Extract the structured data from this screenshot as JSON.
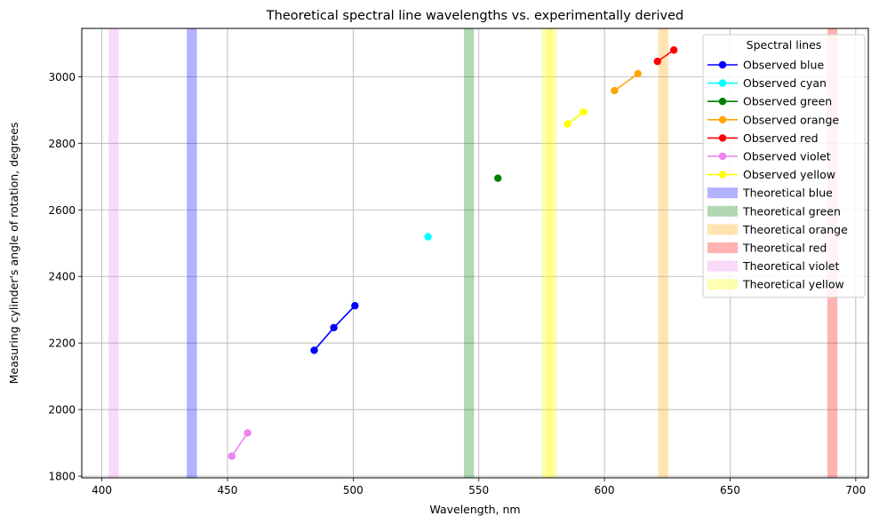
{
  "chart_data": {
    "type": "line",
    "title": "Theoretical spectral line wavelengths vs. experimentally derived",
    "xlabel": "Wavelength, nm",
    "ylabel": "Measuring cylinder's angle of rotation, degrees",
    "xlim": [
      392,
      705
    ],
    "ylim": [
      1795,
      3145
    ],
    "xticks": [
      400,
      450,
      500,
      550,
      600,
      650,
      700
    ],
    "yticks": [
      1800,
      2000,
      2200,
      2400,
      2600,
      2800,
      3000
    ],
    "grid": true,
    "legend": {
      "title": "Spectral lines",
      "placement": "top-right"
    },
    "series": [
      {
        "name": "Observed blue",
        "color": "#0000ff",
        "x": [
          484.5,
          492.3,
          500.7
        ],
        "y": [
          2178,
          2246,
          2312
        ]
      },
      {
        "name": "Observed cyan",
        "color": "#00ffff",
        "x": [
          529.8
        ],
        "y": [
          2519
        ]
      },
      {
        "name": "Observed green",
        "color": "#008000",
        "x": [
          557.6
        ],
        "y": [
          2695
        ]
      },
      {
        "name": "Observed orange",
        "color": "#ffa500",
        "x": [
          604.0,
          613.3
        ],
        "y": [
          2958,
          3009
        ]
      },
      {
        "name": "Observed red",
        "color": "#ff0000",
        "x": [
          621.1,
          627.6
        ],
        "y": [
          3046,
          3080
        ]
      },
      {
        "name": "Observed violet",
        "color": "#ee82ee",
        "x": [
          451.7,
          458.0
        ],
        "y": [
          1860,
          1930
        ]
      },
      {
        "name": "Observed yellow",
        "color": "#ffff00",
        "x": [
          585.3,
          591.7
        ],
        "y": [
          2858,
          2894
        ]
      }
    ],
    "bands": [
      {
        "name": "Theoretical blue",
        "color": "#0000ff",
        "alpha": 0.3,
        "x": [
          435.8
        ]
      },
      {
        "name": "Theoretical green",
        "color": "#008000",
        "alpha": 0.3,
        "x": [
          546.1
        ]
      },
      {
        "name": "Theoretical orange",
        "color": "#ffa500",
        "alpha": 0.3,
        "x": [
          623.4
        ]
      },
      {
        "name": "Theoretical red",
        "color": "#ff0000",
        "alpha": 0.3,
        "x": [
          690.7
        ]
      },
      {
        "name": "Theoretical violet",
        "color": "#ee82ee",
        "alpha": 0.3,
        "x": [
          404.7
        ]
      },
      {
        "name": "Theoretical yellow",
        "color": "#ffff00",
        "alpha": 0.3,
        "x": [
          577.0,
          579.1
        ]
      }
    ]
  }
}
